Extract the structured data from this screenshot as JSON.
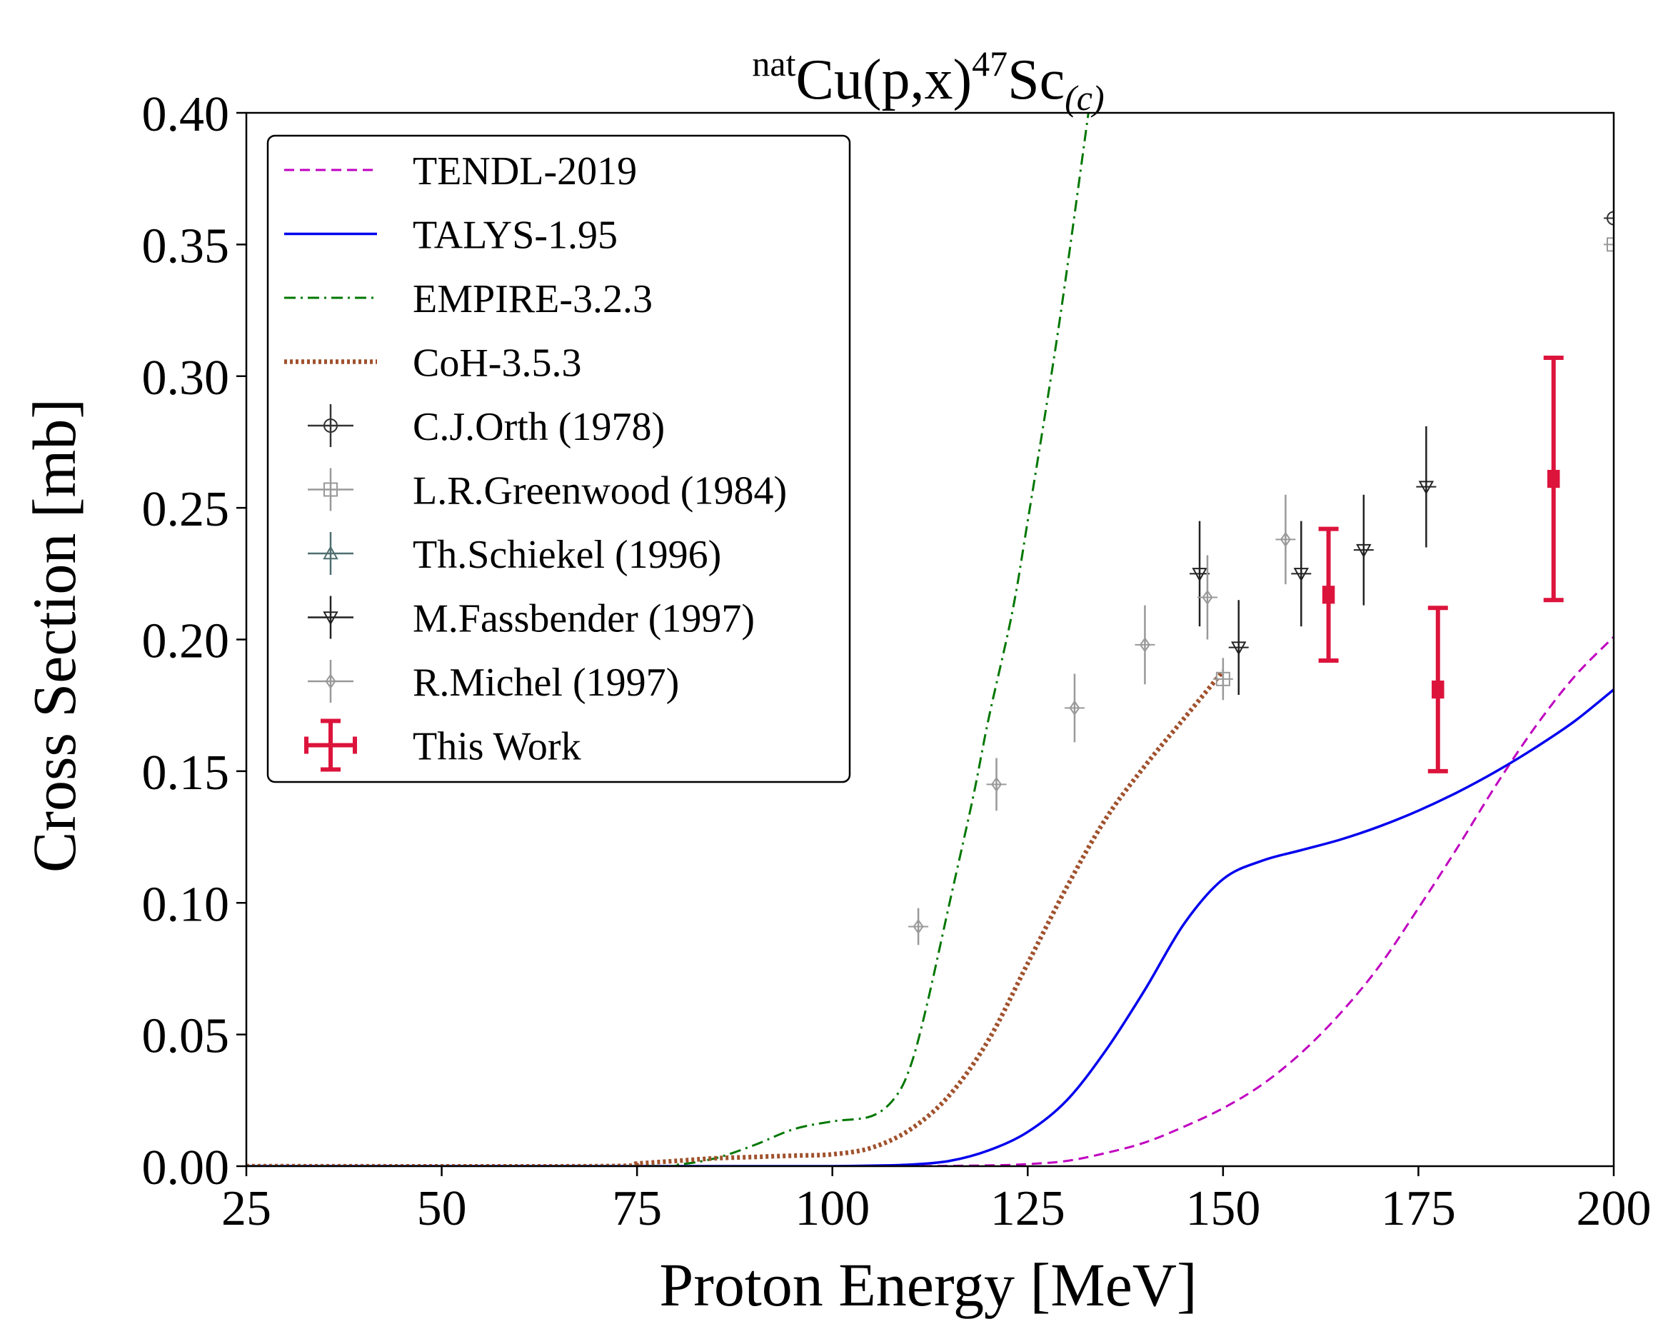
{
  "chart_data": {
    "type": "line",
    "title": {
      "sup_prefix": "nat",
      "main": "Cu(p,x)",
      "sup_mass": "47",
      "element": "Sc",
      "sub": "(c)"
    },
    "xlabel": "Proton Energy [MeV]",
    "ylabel": "Cross Section [mb]",
    "xlim": [
      25,
      200
    ],
    "ylim": [
      0.0,
      0.4
    ],
    "xticks": [
      25,
      50,
      75,
      100,
      125,
      150,
      175,
      200
    ],
    "xtick_labels": [
      "25",
      "50",
      "75",
      "100",
      "125",
      "150",
      "175",
      "200"
    ],
    "yticks": [
      0.0,
      0.05,
      0.1,
      0.15,
      0.2,
      0.25,
      0.3,
      0.35,
      0.4
    ],
    "ytick_labels": [
      "0.00",
      "0.05",
      "0.10",
      "0.15",
      "0.20",
      "0.25",
      "0.30",
      "0.35",
      "0.40"
    ],
    "grid": false,
    "legend_position": "top-left",
    "series": [
      {
        "name": "TENDL-2019",
        "kind": "line",
        "color": "#c000c0",
        "style": "dashed",
        "x": [
          25,
          80,
          100,
          110,
          120,
          125,
          130,
          135,
          140,
          145,
          150,
          155,
          160,
          165,
          170,
          175,
          180,
          185,
          190,
          195,
          200
        ],
        "y": [
          0,
          0,
          0,
          0,
          0.0003,
          0.0008,
          0.002,
          0.005,
          0.009,
          0.015,
          0.022,
          0.031,
          0.043,
          0.058,
          0.076,
          0.098,
          0.121,
          0.145,
          0.167,
          0.186,
          0.201
        ]
      },
      {
        "name": "TALYS-1.95",
        "kind": "line",
        "color": "#0000ee",
        "style": "solid",
        "x": [
          25,
          90,
          100,
          105,
          110,
          115,
          120,
          125,
          130,
          135,
          140,
          145,
          150,
          155,
          160,
          165,
          170,
          175,
          180,
          185,
          190,
          195,
          200
        ],
        "y": [
          0,
          0,
          0,
          0.0002,
          0.0006,
          0.002,
          0.006,
          0.013,
          0.025,
          0.044,
          0.067,
          0.092,
          0.109,
          0.116,
          0.12,
          0.124,
          0.129,
          0.135,
          0.142,
          0.15,
          0.159,
          0.169,
          0.181
        ]
      },
      {
        "name": "EMPIRE-3.2.3",
        "kind": "line",
        "color": "#007700",
        "style": "dashdot",
        "x": [
          25,
          75,
          80,
          85,
          90,
          95,
          100,
          105,
          108,
          110,
          112,
          115,
          118,
          120,
          123,
          125,
          128,
          130,
          133
        ],
        "y": [
          0,
          0,
          0.0005,
          0.003,
          0.008,
          0.014,
          0.017,
          0.019,
          0.026,
          0.038,
          0.06,
          0.1,
          0.14,
          0.17,
          0.21,
          0.245,
          0.3,
          0.34,
          0.405
        ]
      },
      {
        "name": "CoH-3.5.3",
        "kind": "line",
        "color": "#a0522d",
        "style": "dotted",
        "x": [
          25,
          70,
          75,
          80,
          85,
          90,
          95,
          100,
          105,
          110,
          115,
          120,
          125,
          130,
          135,
          140,
          145,
          150
        ],
        "y": [
          0,
          0,
          0.001,
          0.002,
          0.003,
          0.0035,
          0.004,
          0.0045,
          0.007,
          0.014,
          0.027,
          0.048,
          0.077,
          0.106,
          0.132,
          0.152,
          0.17,
          0.188
        ]
      },
      {
        "name": "C.J.Orth (1978)",
        "kind": "errorbar",
        "color": "#333333",
        "marker": "circle",
        "x": [
          200
        ],
        "y": [
          0.36
        ],
        "yerr": [
          0
        ]
      },
      {
        "name": "L.R.Greenwood (1984)",
        "kind": "errorbar",
        "color": "#999999",
        "marker": "square",
        "x": [
          150,
          200
        ],
        "y": [
          0.185,
          0.35
        ],
        "yerr": [
          0.008,
          0
        ]
      },
      {
        "name": "Th.Schiekel (1996)",
        "kind": "errorbar",
        "color": "#4f6e70",
        "marker": "triangle-up",
        "x": [],
        "y": [],
        "yerr": []
      },
      {
        "name": "M.Fassbender (1997)",
        "kind": "errorbar",
        "color": "#222222",
        "marker": "triangle-down",
        "x": [
          147,
          152,
          160,
          168,
          176
        ],
        "y": [
          0.225,
          0.197,
          0.225,
          0.234,
          0.258
        ],
        "yerr": [
          0.02,
          0.018,
          0.02,
          0.021,
          0.023
        ]
      },
      {
        "name": "R.Michel (1997)",
        "kind": "errorbar",
        "color": "#999999",
        "marker": "diamond",
        "x": [
          111,
          121,
          131,
          140,
          148,
          158
        ],
        "y": [
          0.091,
          0.145,
          0.174,
          0.198,
          0.216,
          0.238
        ],
        "yerr": [
          0.007,
          0.01,
          0.013,
          0.015,
          0.016,
          0.017
        ]
      },
      {
        "name": "This Work",
        "kind": "errorbar",
        "color": "#dc143c",
        "marker": "square-filled",
        "x": [
          163.5,
          177.5,
          192.3
        ],
        "y": [
          0.217,
          0.181,
          0.261
        ],
        "yerr": [
          0.025,
          0.031,
          0.046
        ]
      }
    ]
  }
}
